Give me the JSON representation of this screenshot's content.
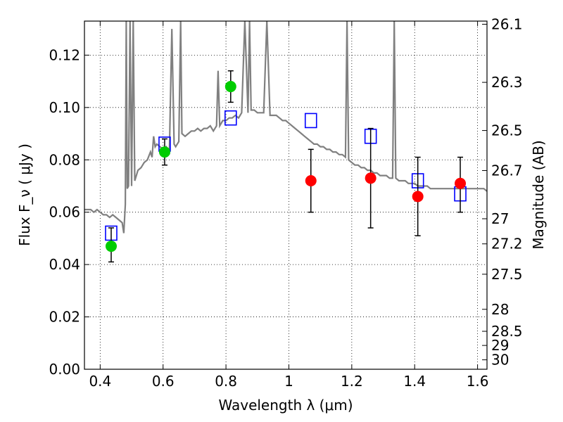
{
  "chart_data": {
    "type": "scatter",
    "xlabel": "Wavelength  λ (μm)",
    "ylabel": "Flux  F_ν  ( μJy )",
    "ylabel_right": "Magnitude (AB)",
    "xlim": [
      0.35,
      1.63
    ],
    "ylim": [
      0.0,
      0.133
    ],
    "grid": true,
    "x_ticks": [
      {
        "value": 0.4,
        "label": "0.4"
      },
      {
        "value": 0.6,
        "label": "0.6"
      },
      {
        "value": 0.8,
        "label": "0.8"
      },
      {
        "value": 1.0,
        "label": "1"
      },
      {
        "value": 1.2,
        "label": "1.2"
      },
      {
        "value": 1.4,
        "label": "1.4"
      },
      {
        "value": 1.6,
        "label": "1.6"
      }
    ],
    "y_ticks": [
      {
        "value": 0.0,
        "label": "0.00"
      },
      {
        "value": 0.02,
        "label": "0.02"
      },
      {
        "value": 0.04,
        "label": "0.04"
      },
      {
        "value": 0.06,
        "label": "0.06"
      },
      {
        "value": 0.08,
        "label": "0.08"
      },
      {
        "value": 0.1,
        "label": "0.10"
      },
      {
        "value": 0.12,
        "label": "0.12"
      }
    ],
    "right_ticks": [
      {
        "flux": 0.1318,
        "label": "26.1"
      },
      {
        "flux": 0.1096,
        "label": "26.3"
      },
      {
        "flux": 0.0912,
        "label": "26.5"
      },
      {
        "flux": 0.0759,
        "label": "26.7"
      },
      {
        "flux": 0.0575,
        "label": "27"
      },
      {
        "flux": 0.0479,
        "label": "27.2"
      },
      {
        "flux": 0.0363,
        "label": "27.5"
      },
      {
        "flux": 0.0229,
        "label": "28"
      },
      {
        "flux": 0.0145,
        "label": "28.5"
      },
      {
        "flux": 0.0091,
        "label": "29"
      },
      {
        "flux": 0.0036,
        "label": "30"
      }
    ],
    "series": [
      {
        "kind": "line",
        "color": "#808080",
        "points": [
          [
            0.35,
            0.061
          ],
          [
            0.36,
            0.061
          ],
          [
            0.37,
            0.061
          ],
          [
            0.38,
            0.06
          ],
          [
            0.39,
            0.061
          ],
          [
            0.4,
            0.06
          ],
          [
            0.41,
            0.059
          ],
          [
            0.42,
            0.059
          ],
          [
            0.43,
            0.058
          ],
          [
            0.44,
            0.059
          ],
          [
            0.45,
            0.058
          ],
          [
            0.46,
            0.057
          ],
          [
            0.47,
            0.056
          ],
          [
            0.475,
            0.052
          ],
          [
            0.48,
            0.063
          ],
          [
            0.483,
            0.133
          ],
          [
            0.486,
            0.069
          ],
          [
            0.49,
            0.07
          ],
          [
            0.495,
            0.133
          ],
          [
            0.5,
            0.07
          ],
          [
            0.505,
            0.133
          ],
          [
            0.51,
            0.072
          ],
          [
            0.52,
            0.076
          ],
          [
            0.53,
            0.077
          ],
          [
            0.54,
            0.079
          ],
          [
            0.55,
            0.08
          ],
          [
            0.56,
            0.083
          ],
          [
            0.565,
            0.081
          ],
          [
            0.57,
            0.089
          ],
          [
            0.575,
            0.085
          ],
          [
            0.58,
            0.086
          ],
          [
            0.59,
            0.085
          ],
          [
            0.6,
            0.084
          ],
          [
            0.61,
            0.085
          ],
          [
            0.62,
            0.083
          ],
          [
            0.628,
            0.13
          ],
          [
            0.635,
            0.086
          ],
          [
            0.64,
            0.085
          ],
          [
            0.65,
            0.087
          ],
          [
            0.656,
            0.133
          ],
          [
            0.66,
            0.09
          ],
          [
            0.67,
            0.089
          ],
          [
            0.68,
            0.09
          ],
          [
            0.69,
            0.091
          ],
          [
            0.7,
            0.091
          ],
          [
            0.71,
            0.092
          ],
          [
            0.72,
            0.091
          ],
          [
            0.73,
            0.092
          ],
          [
            0.74,
            0.092
          ],
          [
            0.75,
            0.093
          ],
          [
            0.76,
            0.091
          ],
          [
            0.77,
            0.093
          ],
          [
            0.775,
            0.114
          ],
          [
            0.78,
            0.093
          ],
          [
            0.79,
            0.095
          ],
          [
            0.8,
            0.095
          ],
          [
            0.81,
            0.096
          ],
          [
            0.82,
            0.096
          ],
          [
            0.83,
            0.097
          ],
          [
            0.84,
            0.096
          ],
          [
            0.85,
            0.098
          ],
          [
            0.86,
            0.133
          ],
          [
            0.87,
            0.098
          ],
          [
            0.875,
            0.133
          ],
          [
            0.88,
            0.099
          ],
          [
            0.89,
            0.099
          ],
          [
            0.9,
            0.098
          ],
          [
            0.91,
            0.098
          ],
          [
            0.92,
            0.098
          ],
          [
            0.93,
            0.133
          ],
          [
            0.94,
            0.097
          ],
          [
            0.95,
            0.097
          ],
          [
            0.96,
            0.097
          ],
          [
            0.97,
            0.096
          ],
          [
            0.98,
            0.095
          ],
          [
            0.99,
            0.095
          ],
          [
            1.0,
            0.094
          ],
          [
            1.01,
            0.093
          ],
          [
            1.02,
            0.092
          ],
          [
            1.03,
            0.091
          ],
          [
            1.04,
            0.09
          ],
          [
            1.05,
            0.089
          ],
          [
            1.06,
            0.088
          ],
          [
            1.07,
            0.087
          ],
          [
            1.08,
            0.086
          ],
          [
            1.09,
            0.086
          ],
          [
            1.1,
            0.085
          ],
          [
            1.11,
            0.085
          ],
          [
            1.12,
            0.084
          ],
          [
            1.13,
            0.084
          ],
          [
            1.14,
            0.083
          ],
          [
            1.15,
            0.083
          ],
          [
            1.16,
            0.082
          ],
          [
            1.17,
            0.082
          ],
          [
            1.18,
            0.081
          ],
          [
            1.185,
            0.133
          ],
          [
            1.19,
            0.08
          ],
          [
            1.2,
            0.079
          ],
          [
            1.21,
            0.078
          ],
          [
            1.22,
            0.078
          ],
          [
            1.23,
            0.077
          ],
          [
            1.24,
            0.077
          ],
          [
            1.25,
            0.076
          ],
          [
            1.26,
            0.076
          ],
          [
            1.27,
            0.075
          ],
          [
            1.28,
            0.075
          ],
          [
            1.29,
            0.074
          ],
          [
            1.3,
            0.074
          ],
          [
            1.31,
            0.074
          ],
          [
            1.32,
            0.073
          ],
          [
            1.33,
            0.073
          ],
          [
            1.335,
            0.133
          ],
          [
            1.34,
            0.073
          ],
          [
            1.35,
            0.072
          ],
          [
            1.36,
            0.072
          ],
          [
            1.37,
            0.072
          ],
          [
            1.38,
            0.071
          ],
          [
            1.39,
            0.071
          ],
          [
            1.4,
            0.071
          ],
          [
            1.41,
            0.07
          ],
          [
            1.42,
            0.07
          ],
          [
            1.43,
            0.07
          ],
          [
            1.44,
            0.07
          ],
          [
            1.45,
            0.069
          ],
          [
            1.46,
            0.069
          ],
          [
            1.47,
            0.069
          ],
          [
            1.48,
            0.069
          ],
          [
            1.49,
            0.069
          ],
          [
            1.5,
            0.069
          ],
          [
            1.51,
            0.069
          ],
          [
            1.52,
            0.069
          ],
          [
            1.53,
            0.069
          ],
          [
            1.54,
            0.069
          ],
          [
            1.55,
            0.069
          ],
          [
            1.56,
            0.069
          ],
          [
            1.57,
            0.069
          ],
          [
            1.58,
            0.069
          ],
          [
            1.59,
            0.069
          ],
          [
            1.6,
            0.069
          ],
          [
            1.61,
            0.069
          ],
          [
            1.62,
            0.069
          ],
          [
            1.63,
            0.068
          ]
        ]
      },
      {
        "kind": "squares",
        "color": "#0000ff",
        "points": [
          [
            0.435,
            0.052
          ],
          [
            0.605,
            0.086
          ],
          [
            0.815,
            0.096
          ],
          [
            1.07,
            0.095
          ],
          [
            1.26,
            0.089
          ],
          [
            1.41,
            0.072
          ],
          [
            1.545,
            0.067
          ]
        ]
      },
      {
        "kind": "points",
        "color": "#00cc00",
        "points": [
          {
            "x": 0.435,
            "y": 0.047,
            "lo": 0.041,
            "hi": 0.054
          },
          {
            "x": 0.605,
            "y": 0.083,
            "lo": 0.078,
            "hi": 0.088
          },
          {
            "x": 0.815,
            "y": 0.108,
            "lo": 0.102,
            "hi": 0.114
          }
        ]
      },
      {
        "kind": "points",
        "color": "#ff0000",
        "points": [
          {
            "x": 1.07,
            "y": 0.072,
            "lo": 0.06,
            "hi": 0.084
          },
          {
            "x": 1.26,
            "y": 0.073,
            "lo": 0.054,
            "hi": 0.092
          },
          {
            "x": 1.41,
            "y": 0.066,
            "lo": 0.051,
            "hi": 0.081
          },
          {
            "x": 1.545,
            "y": 0.071,
            "lo": 0.06,
            "hi": 0.081
          }
        ]
      }
    ]
  }
}
